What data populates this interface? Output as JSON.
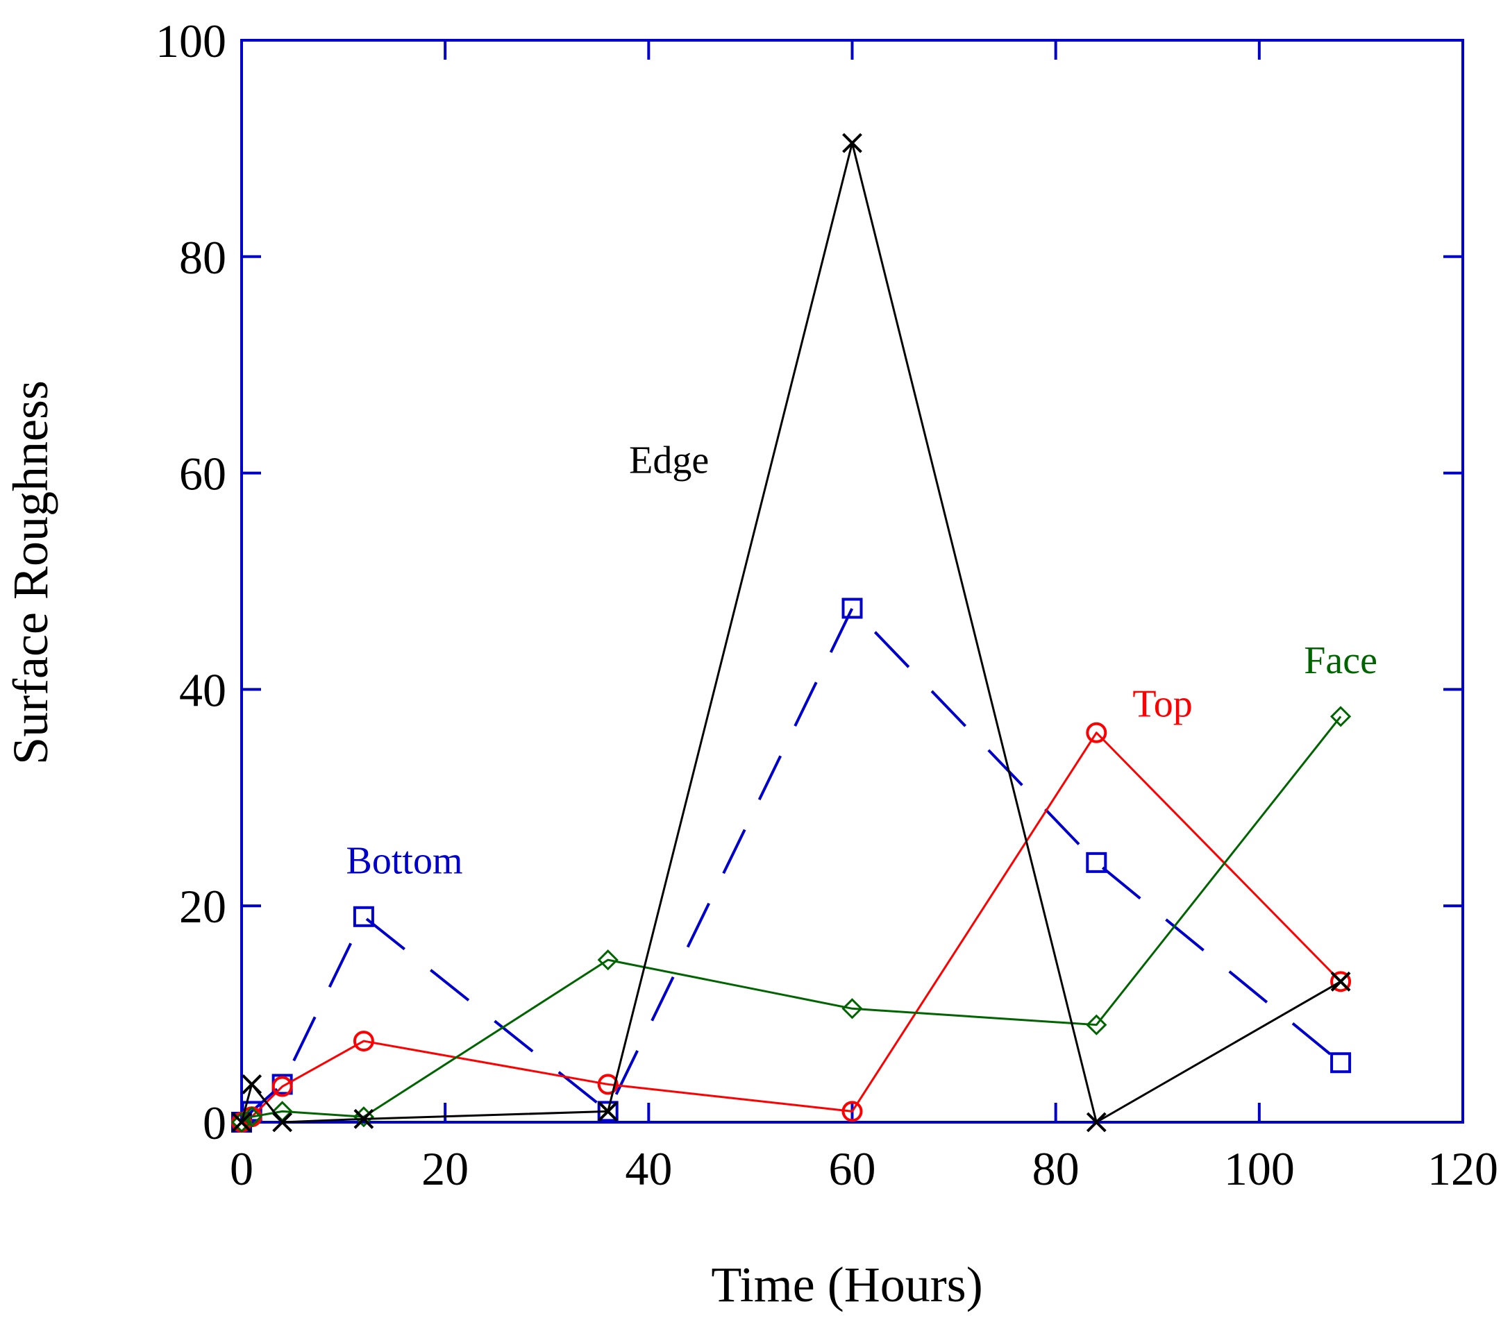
{
  "chart_data": {
    "type": "line",
    "title": "",
    "xlabel": "Time (Hours)",
    "ylabel": "Surface Roughness",
    "xlim": [
      0,
      120
    ],
    "ylim": [
      0,
      100
    ],
    "xticks": [
      0,
      20,
      40,
      60,
      80,
      100,
      120
    ],
    "yticks": [
      0,
      20,
      40,
      60,
      80,
      100
    ],
    "grid": false,
    "legend": "inline labels",
    "axis_color": "#0000cc",
    "series": [
      {
        "name": "Bottom",
        "color": "#0000cc",
        "marker": "square",
        "line": "dashed",
        "x": [
          0,
          1,
          4,
          12,
          36,
          60,
          84,
          108
        ],
        "y": [
          0,
          1,
          3.5,
          19,
          1,
          47.5,
          24,
          5.5
        ]
      },
      {
        "name": "Top",
        "color": "#ff0000",
        "marker": "circle",
        "line": "solid",
        "x": [
          0,
          1,
          4,
          12,
          36,
          60,
          84,
          108
        ],
        "y": [
          0,
          0.5,
          3.3,
          7.5,
          3.5,
          1,
          36,
          13
        ]
      },
      {
        "name": "Face",
        "color": "#006400",
        "marker": "diamond",
        "line": "solid",
        "x": [
          0,
          1,
          4,
          12,
          36,
          60,
          84,
          108
        ],
        "y": [
          0,
          0.5,
          1,
          0.5,
          15,
          10.5,
          9,
          37.5
        ]
      },
      {
        "name": "Edge",
        "color": "#000000",
        "marker": "x",
        "line": "solid",
        "x": [
          0,
          1,
          4,
          12,
          36,
          60,
          84,
          108
        ],
        "y": [
          0,
          3.5,
          0,
          0.3,
          1,
          90.5,
          0,
          13
        ]
      }
    ],
    "annotations": [
      {
        "text": "Bottom",
        "series": "Bottom",
        "x": 16,
        "y": 23
      },
      {
        "text": "Top",
        "series": "Top",
        "x": 90.5,
        "y": 37.5
      },
      {
        "text": "Face",
        "series": "Face",
        "x": 108,
        "y": 41.5
      },
      {
        "text": "Edge",
        "series": "Edge",
        "x": 42,
        "y": 60
      }
    ]
  }
}
